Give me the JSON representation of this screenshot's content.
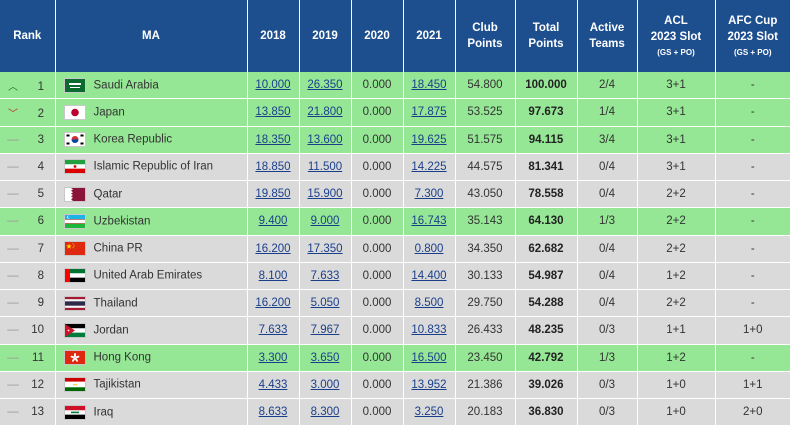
{
  "header": {
    "rank": "Rank",
    "ma": "MA",
    "y2018": "2018",
    "y2019": "2019",
    "y2020": "2020",
    "y2021": "2021",
    "club_points_1": "Club",
    "club_points_2": "Points",
    "total_points_1": "Total",
    "total_points_2": "Points",
    "active_teams_1": "Active",
    "active_teams_2": "Teams",
    "acl_1": "ACL",
    "acl_2": "2023 Slot",
    "acl_sub": "(GS + PO)",
    "afc_1": "AFC Cup",
    "afc_2": "2023 Slot",
    "afc_sub": "(GS + PO)"
  },
  "rows": [
    {
      "trend": "up",
      "trend_icon": "︿",
      "rank": "1",
      "flag": "saudi-arabia",
      "name": "Saudi Arabia",
      "y2018": "10.000",
      "y2019": "26.350",
      "y2020": "0.000",
      "y2021": "18.450",
      "club": "54.800",
      "total": "100.000",
      "active": "2/4",
      "acl": "3+1",
      "afc": "-",
      "row_color": "green"
    },
    {
      "trend": "down",
      "trend_icon": "﹀",
      "rank": "2",
      "flag": "japan",
      "name": "Japan",
      "y2018": "13.850",
      "y2019": "21.800",
      "y2020": "0.000",
      "y2021": "17.875",
      "club": "53.525",
      "total": "97.673",
      "active": "1/4",
      "acl": "3+1",
      "afc": "-",
      "row_color": "green"
    },
    {
      "trend": "same",
      "trend_icon": "—",
      "rank": "3",
      "flag": "korea-republic",
      "name": "Korea Republic",
      "y2018": "18.350",
      "y2019": "13.600",
      "y2020": "0.000",
      "y2021": "19.625",
      "club": "51.575",
      "total": "94.115",
      "active": "3/4",
      "acl": "3+1",
      "afc": "-",
      "row_color": "green"
    },
    {
      "trend": "same",
      "trend_icon": "—",
      "rank": "4",
      "flag": "iran",
      "name": "Islamic Republic of Iran",
      "y2018": "18.850",
      "y2019": "11.500",
      "y2020": "0.000",
      "y2021": "14.225",
      "club": "44.575",
      "total": "81.341",
      "active": "0/4",
      "acl": "3+1",
      "afc": "-",
      "row_color": "grey"
    },
    {
      "trend": "same",
      "trend_icon": "—",
      "rank": "5",
      "flag": "qatar",
      "name": "Qatar",
      "y2018": "19.850",
      "y2019": "15.900",
      "y2020": "0.000",
      "y2021": "7.300",
      "club": "43.050",
      "total": "78.558",
      "active": "0/4",
      "acl": "2+2",
      "afc": "-",
      "row_color": "grey"
    },
    {
      "trend": "same",
      "trend_icon": "—",
      "rank": "6",
      "flag": "uzbekistan",
      "name": "Uzbekistan",
      "y2018": "9.400",
      "y2019": "9.000",
      "y2020": "0.000",
      "y2021": "16.743",
      "club": "35.143",
      "total": "64.130",
      "active": "1/3",
      "acl": "2+2",
      "afc": "-",
      "row_color": "green"
    },
    {
      "trend": "same",
      "trend_icon": "—",
      "rank": "7",
      "flag": "china",
      "name": "China PR",
      "y2018": "16.200",
      "y2019": "17.350",
      "y2020": "0.000",
      "y2021": "0.800",
      "club": "34.350",
      "total": "62.682",
      "active": "0/4",
      "acl": "2+2",
      "afc": "-",
      "row_color": "grey"
    },
    {
      "trend": "same",
      "trend_icon": "—",
      "rank": "8",
      "flag": "uae",
      "name": "United Arab Emirates",
      "y2018": "8.100",
      "y2019": "7.633",
      "y2020": "0.000",
      "y2021": "14.400",
      "club": "30.133",
      "total": "54.987",
      "active": "0/4",
      "acl": "1+2",
      "afc": "-",
      "row_color": "grey"
    },
    {
      "trend": "same",
      "trend_icon": "—",
      "rank": "9",
      "flag": "thailand",
      "name": "Thailand",
      "y2018": "16.200",
      "y2019": "5.050",
      "y2020": "0.000",
      "y2021": "8.500",
      "club": "29.750",
      "total": "54.288",
      "active": "0/4",
      "acl": "2+2",
      "afc": "-",
      "row_color": "grey"
    },
    {
      "trend": "same",
      "trend_icon": "—",
      "rank": "10",
      "flag": "jordan",
      "name": "Jordan",
      "y2018": "7.633",
      "y2019": "7.967",
      "y2020": "0.000",
      "y2021": "10.833",
      "club": "26.433",
      "total": "48.235",
      "active": "0/3",
      "acl": "1+1",
      "afc": "1+0",
      "row_color": "grey"
    },
    {
      "trend": "same",
      "trend_icon": "—",
      "rank": "11",
      "flag": "hong-kong",
      "name": "Hong Kong",
      "y2018": "3.300",
      "y2019": "3.650",
      "y2020": "0.000",
      "y2021": "16.500",
      "club": "23.450",
      "total": "42.792",
      "active": "1/3",
      "acl": "1+2",
      "afc": "-",
      "row_color": "green"
    },
    {
      "trend": "same",
      "trend_icon": "—",
      "rank": "12",
      "flag": "tajikistan",
      "name": "Tajikistan",
      "y2018": "4.433",
      "y2019": "3.000",
      "y2020": "0.000",
      "y2021": "13.952",
      "club": "21.386",
      "total": "39.026",
      "active": "0/3",
      "acl": "1+0",
      "afc": "1+1",
      "row_color": "grey"
    },
    {
      "trend": "same",
      "trend_icon": "—",
      "rank": "13",
      "flag": "iraq",
      "name": "Iraq",
      "y2018": "8.633",
      "y2019": "8.300",
      "y2020": "0.000",
      "y2021": "3.250",
      "club": "20.183",
      "total": "36.830",
      "active": "0/3",
      "acl": "1+0",
      "afc": "2+0",
      "row_color": "grey"
    }
  ],
  "colors": {
    "header_bg": "#1d4f8f",
    "row_green": "#95e795",
    "row_grey": "#dadada",
    "link": "#1a3f8a",
    "trend_up": "#2a6b2a",
    "trend_down": "#cc2222"
  }
}
